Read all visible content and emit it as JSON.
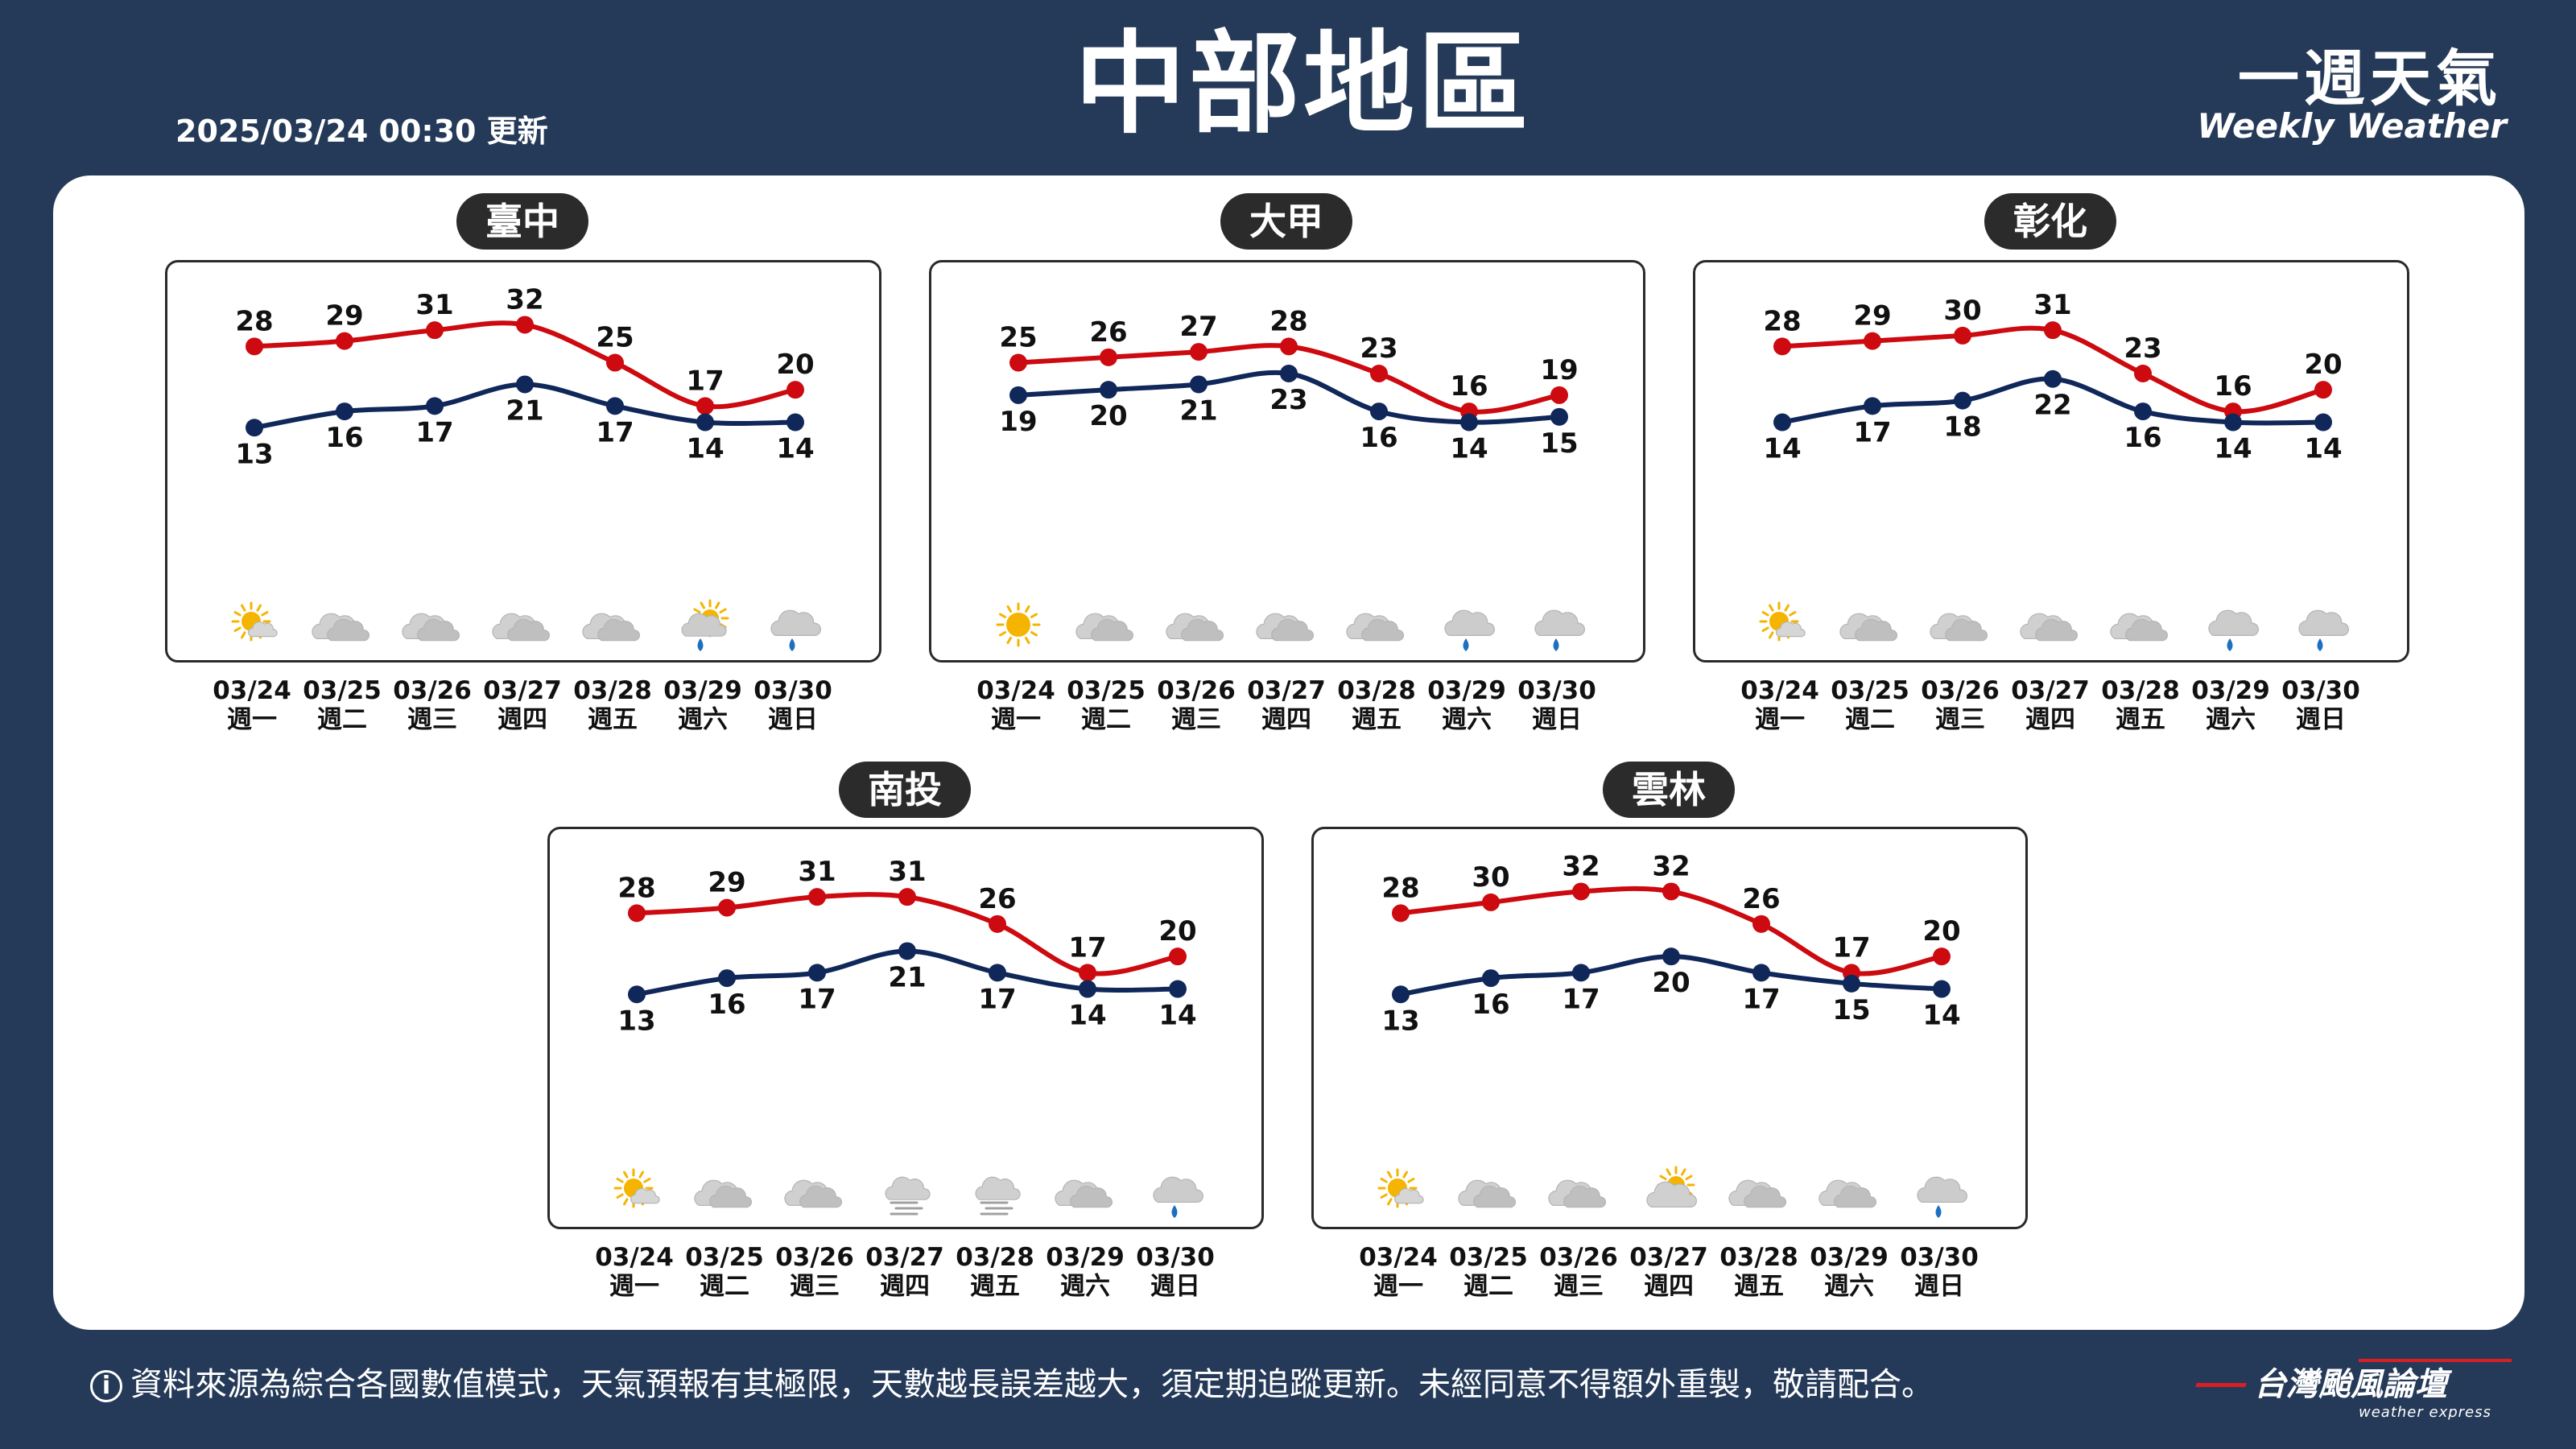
{
  "header": {
    "update_time": "2025/03/24 00:30 更新",
    "title": "中部地區",
    "brand_zh": "一週天氣",
    "brand_en": "Weekly Weather"
  },
  "days": [
    {
      "date": "03/24",
      "weekday": "週一"
    },
    {
      "date": "03/25",
      "weekday": "週二"
    },
    {
      "date": "03/26",
      "weekday": "週三"
    },
    {
      "date": "03/27",
      "weekday": "週四"
    },
    {
      "date": "03/28",
      "weekday": "週五"
    },
    {
      "date": "03/29",
      "weekday": "週六"
    },
    {
      "date": "03/30",
      "weekday": "週日"
    }
  ],
  "colors": {
    "high": "#cc0a0f",
    "low": "#10275a",
    "rain": "#1d6fbf",
    "sun": "#f5b400",
    "cloud": "#c9c9c9"
  },
  "chart_data": [
    {
      "type": "line",
      "title": "臺中",
      "categories": [
        "03/24",
        "03/25",
        "03/26",
        "03/27",
        "03/28",
        "03/29",
        "03/30"
      ],
      "series": [
        {
          "values": [
            28,
            29,
            31,
            32,
            25,
            17,
            20
          ]
        },
        {
          "values": [
            13,
            16,
            17,
            21,
            17,
            14,
            14
          ]
        }
      ],
      "icons": [
        "sun-cloud",
        "cloud",
        "cloud",
        "cloud",
        "cloud",
        "sun-rain",
        "rain"
      ]
    },
    {
      "type": "line",
      "title": "大甲",
      "categories": [
        "03/24",
        "03/25",
        "03/26",
        "03/27",
        "03/28",
        "03/29",
        "03/30"
      ],
      "series": [
        {
          "values": [
            25,
            26,
            27,
            28,
            23,
            16,
            19
          ]
        },
        {
          "values": [
            19,
            20,
            21,
            23,
            16,
            14,
            15
          ]
        }
      ],
      "icons": [
        "sun",
        "cloud",
        "cloud",
        "cloud",
        "cloud",
        "rain",
        "rain"
      ]
    },
    {
      "type": "line",
      "title": "彰化",
      "categories": [
        "03/24",
        "03/25",
        "03/26",
        "03/27",
        "03/28",
        "03/29",
        "03/30"
      ],
      "series": [
        {
          "values": [
            28,
            29,
            30,
            31,
            23,
            16,
            20
          ]
        },
        {
          "values": [
            14,
            17,
            18,
            22,
            16,
            14,
            14
          ]
        }
      ],
      "icons": [
        "sun-cloud",
        "cloud",
        "cloud",
        "cloud",
        "cloud",
        "rain",
        "rain"
      ]
    },
    {
      "type": "line",
      "title": "南投",
      "categories": [
        "03/24",
        "03/25",
        "03/26",
        "03/27",
        "03/28",
        "03/29",
        "03/30"
      ],
      "series": [
        {
          "values": [
            28,
            29,
            31,
            31,
            26,
            17,
            20
          ]
        },
        {
          "values": [
            13,
            16,
            17,
            21,
            17,
            14,
            14
          ]
        }
      ],
      "icons": [
        "sun-cloud",
        "cloud",
        "cloud",
        "fog",
        "fog",
        "cloud",
        "rain"
      ]
    },
    {
      "type": "line",
      "title": "雲林",
      "categories": [
        "03/24",
        "03/25",
        "03/26",
        "03/27",
        "03/28",
        "03/29",
        "03/30"
      ],
      "series": [
        {
          "values": [
            28,
            30,
            32,
            32,
            26,
            17,
            20
          ]
        },
        {
          "values": [
            13,
            16,
            17,
            20,
            17,
            15,
            14
          ]
        }
      ],
      "icons": [
        "sun-cloud",
        "cloud",
        "cloud",
        "cloud-sun",
        "cloud",
        "cloud",
        "rain"
      ]
    }
  ],
  "footer": {
    "info_icon": "i",
    "disclaimer": "資料來源為綜合各國數值模式，天氣預報有其極限，天數越長誤差越大，須定期追蹤更新。未經同意不得額外重製，敬請配合。",
    "brand": "台灣颱風論壇",
    "brand_sub": "weather express"
  }
}
